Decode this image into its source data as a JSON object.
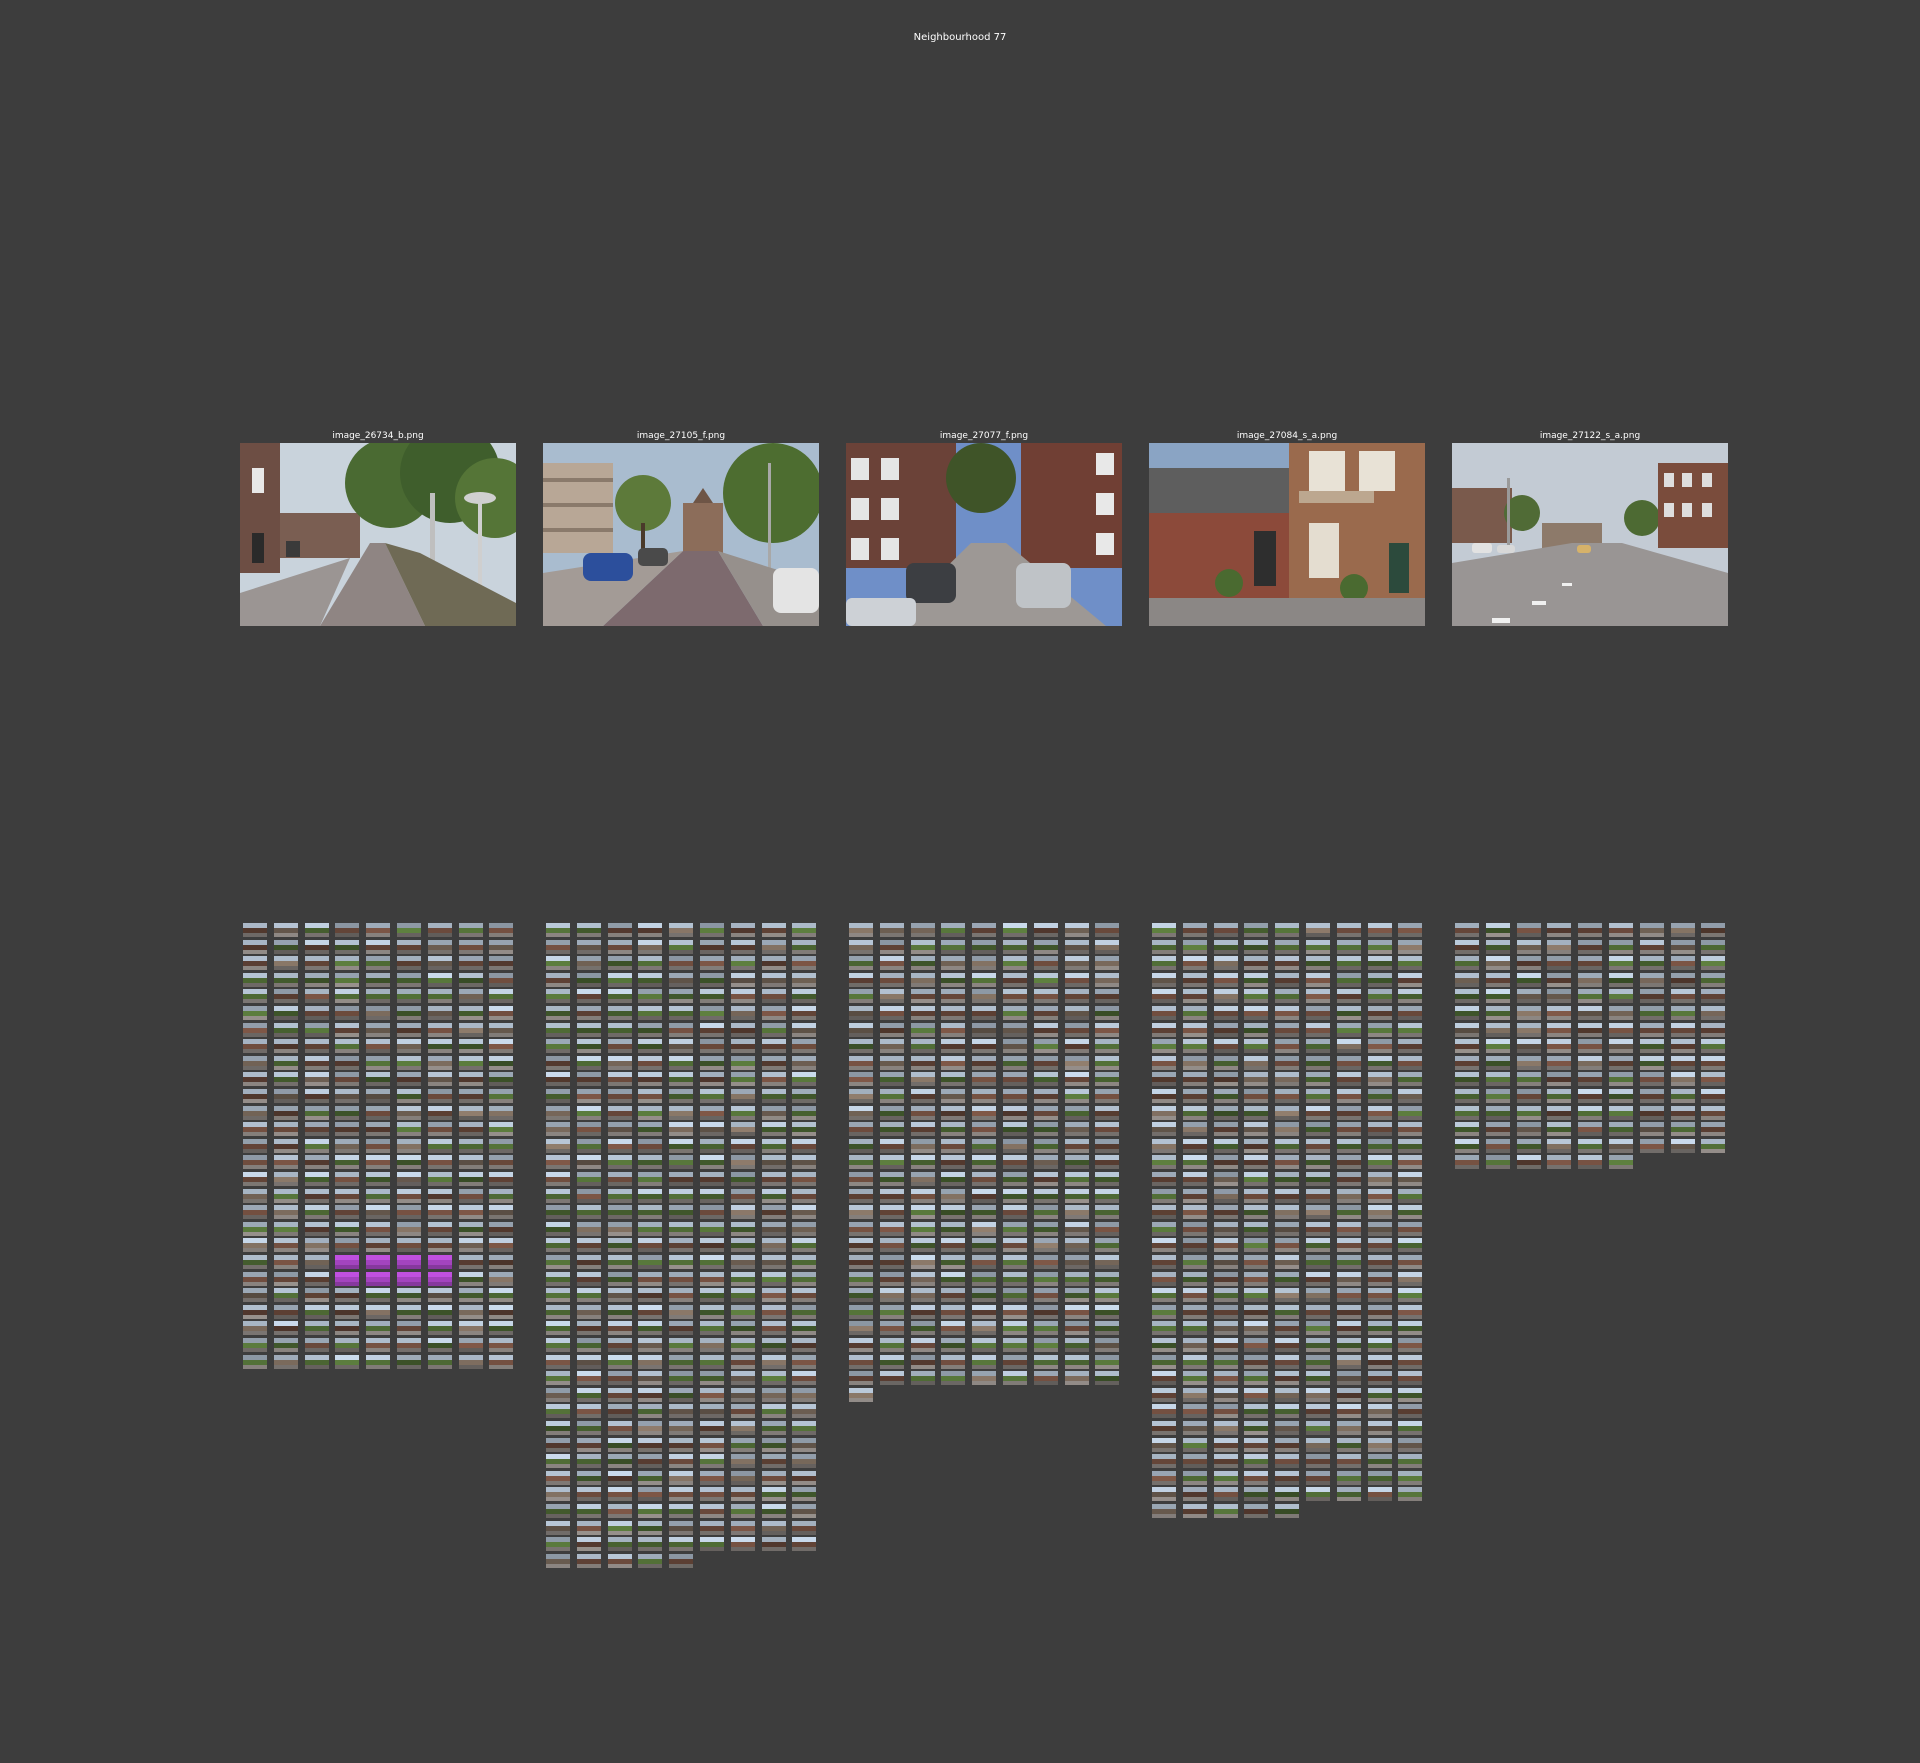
{
  "figure": {
    "title": "Neighbourhood 77"
  },
  "samples": [
    {
      "label": "image_26734_b.png",
      "scene": "street-with-trees-and-lamp",
      "grid_columns": 9,
      "column_heights": [
        27,
        27,
        27,
        27,
        27,
        27,
        27,
        27,
        27
      ],
      "highlight_rows": [
        20,
        21
      ]
    },
    {
      "label": "image_27105_f.png",
      "scene": "street-with-parked-cars",
      "grid_columns": 9,
      "column_heights": [
        39,
        39,
        39,
        39,
        39,
        38,
        38,
        38,
        38
      ],
      "highlight_rows": []
    },
    {
      "label": "image_27077_f.png",
      "scene": "narrow-street-brick-rows",
      "grid_columns": 9,
      "column_heights": [
        29,
        28,
        28,
        28,
        28,
        28,
        28,
        28,
        28
      ],
      "highlight_rows": []
    },
    {
      "label": "image_27084_s_a.png",
      "scene": "brick-facade-and-wall",
      "grid_columns": 9,
      "column_heights": [
        36,
        36,
        36,
        36,
        36,
        35,
        35,
        35,
        35
      ],
      "highlight_rows": []
    },
    {
      "label": "image_27122_s_a.png",
      "scene": "wide-road-with-buildings",
      "grid_columns": 9,
      "column_heights": [
        15,
        15,
        15,
        15,
        15,
        15,
        14,
        14,
        14
      ],
      "highlight_rows": []
    }
  ],
  "palette": {
    "background": "#3d3d3d",
    "text": "#ffffff",
    "sky": "#b9c8d8",
    "foliage": "#4f6b35",
    "brick": "#6b4a3c",
    "road": "#8a8480",
    "highlight": "#c050e0"
  }
}
